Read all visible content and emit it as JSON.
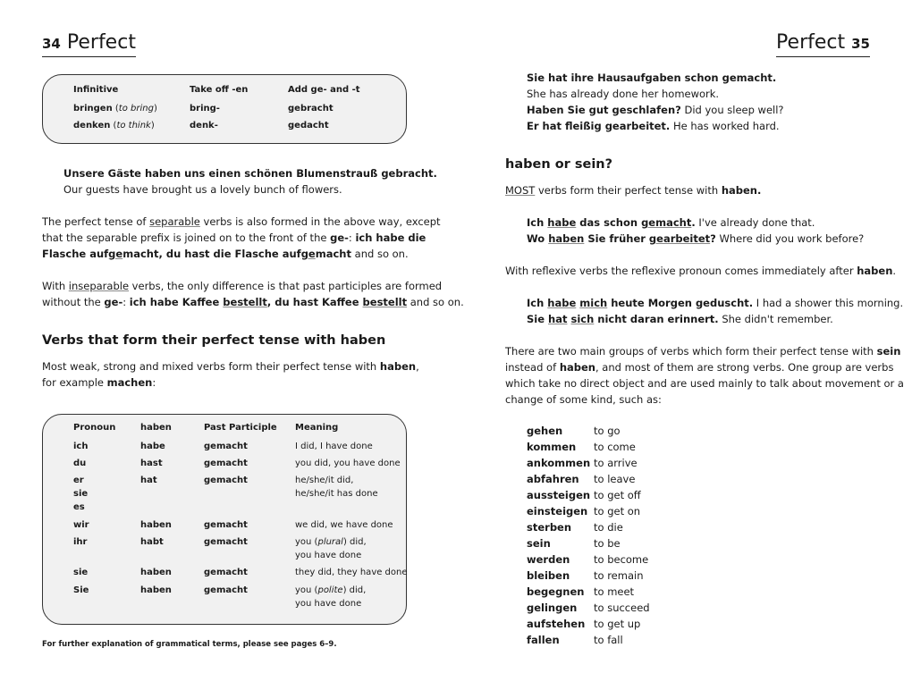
{
  "left": {
    "page_number": "34",
    "running_title": "Perfect",
    "box1": {
      "headers": [
        "Infinitive",
        "Take off -en",
        "Add ge- and -t"
      ],
      "rows": [
        [
          [
            [
              {
                "t": "bringen",
                "s": "b"
              },
              {
                "t": " (",
                "s": ""
              },
              {
                "t": "to bring",
                "s": "i"
              },
              {
                "t": ")",
                "s": ""
              }
            ]
          ],
          [
            [
              {
                "t": "bring-",
                "s": "b"
              }
            ]
          ],
          [
            [
              {
                "t": "gebracht",
                "s": "b"
              }
            ]
          ]
        ],
        [
          [
            [
              {
                "t": "denken",
                "s": "b"
              },
              {
                "t": " (",
                "s": ""
              },
              {
                "t": "to think",
                "s": "i"
              },
              {
                "t": ")",
                "s": ""
              }
            ]
          ],
          [
            [
              {
                "t": "denk-",
                "s": "b"
              }
            ]
          ],
          [
            [
              {
                "t": "gedacht",
                "s": "b"
              }
            ]
          ]
        ]
      ]
    },
    "example": [
      [
        {
          "t": "Unsere Gäste haben uns einen schönen Blumenstrauß gebracht.",
          "s": "b"
        }
      ],
      [
        {
          "t": "Our guests have brought us a lovely bunch of flowers.",
          "s": ""
        }
      ]
    ],
    "para1": [
      [
        {
          "t": "The perfect tense of ",
          "s": ""
        },
        {
          "t": "separable",
          "s": "u"
        },
        {
          "t": " verbs is also formed in the above way, except",
          "s": ""
        }
      ],
      [
        {
          "t": "that the separable prefix is joined on to the front of the ",
          "s": ""
        },
        {
          "t": "ge-",
          "s": "b"
        },
        {
          "t": ": ",
          "s": ""
        },
        {
          "t": "ich habe die",
          "s": "b"
        }
      ],
      [
        {
          "t": "Flasche auf",
          "s": "b"
        },
        {
          "t": "ge",
          "s": "bu"
        },
        {
          "t": "macht, du hast die Flasche auf",
          "s": "b"
        },
        {
          "t": "ge",
          "s": "bu"
        },
        {
          "t": "macht",
          "s": "b"
        },
        {
          "t": " and so on.",
          "s": ""
        }
      ]
    ],
    "para2": [
      [
        {
          "t": "With ",
          "s": ""
        },
        {
          "t": "inseparable",
          "s": "u"
        },
        {
          "t": " verbs, the only difference is that past participles are formed",
          "s": ""
        }
      ],
      [
        {
          "t": "without the ",
          "s": ""
        },
        {
          "t": "ge-",
          "s": "b"
        },
        {
          "t": ": ",
          "s": ""
        },
        {
          "t": "ich habe Kaffee ",
          "s": "b"
        },
        {
          "t": "bestellt",
          "s": "bu"
        },
        {
          "t": ", du hast Kaffee ",
          "s": "b"
        },
        {
          "t": "bestellt",
          "s": "bu"
        },
        {
          "t": " and so on.",
          "s": ""
        }
      ]
    ],
    "heading": "Verbs that form their perfect tense with haben",
    "para3": [
      [
        {
          "t": "Most weak, strong and mixed verbs form their perfect tense with ",
          "s": ""
        },
        {
          "t": "haben",
          "s": "b"
        },
        {
          "t": ",",
          "s": ""
        }
      ],
      [
        {
          "t": "for example ",
          "s": ""
        },
        {
          "t": "machen",
          "s": "b"
        },
        {
          "t": ":",
          "s": ""
        }
      ]
    ],
    "box2": {
      "headers": [
        "Pronoun",
        "haben",
        "Past Participle",
        "Meaning"
      ],
      "rows": [
        [
          [
            [
              {
                "t": "ich",
                "s": "b"
              }
            ]
          ],
          [
            [
              {
                "t": "habe",
                "s": "b"
              }
            ]
          ],
          [
            [
              {
                "t": "gemacht",
                "s": "b"
              }
            ]
          ],
          [
            [
              {
                "t": "I did, I have done",
                "s": ""
              }
            ]
          ]
        ],
        [
          [
            [
              {
                "t": "du",
                "s": "b"
              }
            ]
          ],
          [
            [
              {
                "t": "hast",
                "s": "b"
              }
            ]
          ],
          [
            [
              {
                "t": "gemacht",
                "s": "b"
              }
            ]
          ],
          [
            [
              {
                "t": "you did, you have done",
                "s": ""
              }
            ]
          ]
        ],
        [
          [
            [
              {
                "t": "er",
                "s": "b"
              }
            ],
            [
              {
                "t": "sie",
                "s": "b"
              }
            ],
            [
              {
                "t": "es",
                "s": "b"
              }
            ]
          ],
          [
            [
              {
                "t": "hat",
                "s": "b"
              }
            ]
          ],
          [
            [
              {
                "t": "gemacht",
                "s": "b"
              }
            ]
          ],
          [
            [
              {
                "t": "he/she/it did,",
                "s": ""
              }
            ],
            [
              {
                "t": "he/she/it has done",
                "s": ""
              }
            ]
          ]
        ],
        [
          [
            [
              {
                "t": "wir",
                "s": "b"
              }
            ]
          ],
          [
            [
              {
                "t": "haben",
                "s": "b"
              }
            ]
          ],
          [
            [
              {
                "t": "gemacht",
                "s": "b"
              }
            ]
          ],
          [
            [
              {
                "t": "we did, we have done",
                "s": ""
              }
            ]
          ]
        ],
        [
          [
            [
              {
                "t": "ihr",
                "s": "b"
              }
            ]
          ],
          [
            [
              {
                "t": "habt",
                "s": "b"
              }
            ]
          ],
          [
            [
              {
                "t": "gemacht",
                "s": "b"
              }
            ]
          ],
          [
            [
              {
                "t": "you (",
                "s": ""
              },
              {
                "t": "plural",
                "s": "i"
              },
              {
                "t": ") did,",
                "s": ""
              }
            ],
            [
              {
                "t": "you have done",
                "s": ""
              }
            ]
          ]
        ],
        [
          [
            [
              {
                "t": "sie",
                "s": "b"
              }
            ]
          ],
          [
            [
              {
                "t": "haben",
                "s": "b"
              }
            ]
          ],
          [
            [
              {
                "t": "gemacht",
                "s": "b"
              }
            ]
          ],
          [
            [
              {
                "t": "they did, they have done",
                "s": ""
              }
            ]
          ]
        ],
        [
          [
            [
              {
                "t": "Sie",
                "s": "b"
              }
            ]
          ],
          [
            [
              {
                "t": "haben",
                "s": "b"
              }
            ]
          ],
          [
            [
              {
                "t": "gemacht",
                "s": "b"
              }
            ]
          ],
          [
            [
              {
                "t": "you (",
                "s": ""
              },
              {
                "t": "polite",
                "s": "i"
              },
              {
                "t": ") did,",
                "s": ""
              }
            ],
            [
              {
                "t": "you have done",
                "s": ""
              }
            ]
          ]
        ]
      ]
    },
    "footnote": "For further explanation of grammatical terms, please see pages 6–9."
  },
  "right": {
    "page_number": "35",
    "running_title": "Perfect",
    "examples_top": [
      [
        {
          "t": "Sie hat ihre Hausaufgaben schon gemacht.",
          "s": "b"
        }
      ],
      [
        {
          "t": "She has already done her homework.",
          "s": ""
        }
      ],
      [
        {
          "t": "Haben Sie gut geschlafen?",
          "s": "b"
        },
        {
          "t": " Did you sleep well?",
          "s": ""
        }
      ],
      [
        {
          "t": "Er hat fleißig gearbeitet.",
          "s": "b"
        },
        {
          "t": " He has worked hard.",
          "s": ""
        }
      ]
    ],
    "heading": "haben or sein?",
    "para1": [
      [
        {
          "t": "MOST",
          "s": "u"
        },
        {
          "t": " verbs form their perfect tense with ",
          "s": ""
        },
        {
          "t": "haben.",
          "s": "b"
        }
      ]
    ],
    "examples2": [
      [
        {
          "t": "Ich ",
          "s": "b"
        },
        {
          "t": "habe",
          "s": "bu"
        },
        {
          "t": " das schon ",
          "s": "b"
        },
        {
          "t": "gemacht",
          "s": "bu"
        },
        {
          "t": ".",
          "s": "b"
        },
        {
          "t": " I've already done that.",
          "s": ""
        }
      ],
      [
        {
          "t": "Wo ",
          "s": "b"
        },
        {
          "t": "haben",
          "s": "bu"
        },
        {
          "t": " Sie früher ",
          "s": "b"
        },
        {
          "t": "gearbeitet",
          "s": "bu"
        },
        {
          "t": "?",
          "s": "b"
        },
        {
          "t": " Where did you work before?",
          "s": ""
        }
      ]
    ],
    "para2": [
      [
        {
          "t": "With reflexive verbs the reflexive pronoun comes immediately after ",
          "s": ""
        },
        {
          "t": "haben",
          "s": "b"
        },
        {
          "t": ".",
          "s": ""
        }
      ]
    ],
    "examples3": [
      [
        {
          "t": "Ich ",
          "s": "b"
        },
        {
          "t": "habe",
          "s": "bu"
        },
        {
          "t": " ",
          "s": "b"
        },
        {
          "t": "mich",
          "s": "bu"
        },
        {
          "t": " heute Morgen geduscht.",
          "s": "b"
        },
        {
          "t": " I had a shower this morning.",
          "s": ""
        }
      ],
      [
        {
          "t": "Sie ",
          "s": "b"
        },
        {
          "t": "hat",
          "s": "bu"
        },
        {
          "t": " ",
          "s": "b"
        },
        {
          "t": "sich",
          "s": "bu"
        },
        {
          "t": " nicht daran erinnert.",
          "s": "b"
        },
        {
          "t": " She didn't remember.",
          "s": ""
        }
      ]
    ],
    "para3": [
      [
        {
          "t": "There are two main groups of verbs which form their perfect tense with ",
          "s": ""
        },
        {
          "t": "sein",
          "s": "b"
        }
      ],
      [
        {
          "t": "instead of ",
          "s": ""
        },
        {
          "t": "haben",
          "s": "b"
        },
        {
          "t": ", and most of them are strong verbs. One group are verbs",
          "s": ""
        }
      ],
      [
        {
          "t": "which take no direct object and are used mainly to talk about movement or a",
          "s": ""
        }
      ],
      [
        {
          "t": "change of some kind, such as:",
          "s": ""
        }
      ]
    ],
    "verbs": [
      {
        "de": "gehen",
        "en": "to go"
      },
      {
        "de": "kommen",
        "en": "to come"
      },
      {
        "de": "ankommen",
        "en": "to arrive"
      },
      {
        "de": "abfahren",
        "en": "to leave"
      },
      {
        "de": "aussteigen",
        "en": "to get off"
      },
      {
        "de": "einsteigen",
        "en": "to get on"
      },
      {
        "de": "sterben",
        "en": "to die"
      },
      {
        "de": "sein",
        "en": "to be"
      },
      {
        "de": "werden",
        "en": "to become"
      },
      {
        "de": "bleiben",
        "en": "to remain"
      },
      {
        "de": "begegnen",
        "en": "to meet"
      },
      {
        "de": "gelingen",
        "en": "to succeed"
      },
      {
        "de": "aufstehen",
        "en": "to get up"
      },
      {
        "de": "fallen",
        "en": "to fall"
      }
    ]
  }
}
